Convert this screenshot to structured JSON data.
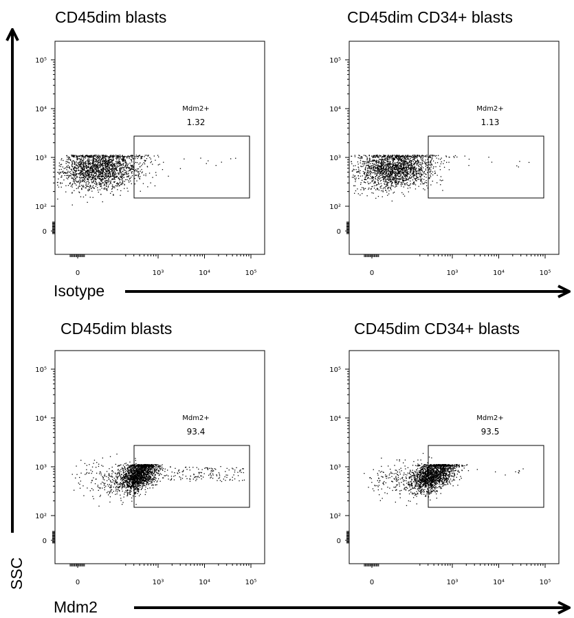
{
  "chart_data": [
    {
      "type": "flow-scatter",
      "title": "CD45dim blasts",
      "gate_label": "Mdm2+",
      "gate_value": 1.32,
      "xticks": [
        0,
        {
          "value": 1000,
          "label": "10³"
        },
        {
          "value": 10000,
          "label": "10⁴"
        },
        {
          "value": 100000,
          "label": "10⁵"
        }
      ],
      "yticks": [
        0,
        {
          "value": 100,
          "label": "10²"
        },
        {
          "value": 1000,
          "label": "10³"
        },
        {
          "value": 10000,
          "label": "10⁴"
        },
        {
          "value": 100000,
          "label": "10⁵"
        }
      ]
    },
    {
      "type": "flow-scatter",
      "title": "CD45dim CD34+ blasts",
      "gate_label": "Mdm2+",
      "gate_value": 1.13,
      "xticks": [
        0,
        {
          "value": 1000,
          "label": "10³"
        },
        {
          "value": 10000,
          "label": "10⁴"
        },
        {
          "value": 100000,
          "label": "10⁵"
        }
      ],
      "yticks": [
        0,
        {
          "value": 100,
          "label": "10²"
        },
        {
          "value": 1000,
          "label": "10³"
        },
        {
          "value": 10000,
          "label": "10⁴"
        },
        {
          "value": 100000,
          "label": "10⁵"
        }
      ]
    },
    {
      "type": "flow-scatter",
      "title": "CD45dim blasts",
      "gate_label": "Mdm2+",
      "gate_value": 93.4,
      "xticks": [
        0,
        {
          "value": 1000,
          "label": "10³"
        },
        {
          "value": 10000,
          "label": "10⁴"
        },
        {
          "value": 100000,
          "label": "10⁵"
        }
      ],
      "yticks": [
        0,
        {
          "value": 100,
          "label": "10²"
        },
        {
          "value": 1000,
          "label": "10³"
        },
        {
          "value": 10000,
          "label": "10⁴"
        },
        {
          "value": 100000,
          "label": "10⁵"
        }
      ]
    },
    {
      "type": "flow-scatter",
      "title": "CD45dim CD34+ blasts",
      "gate_label": "Mdm2+",
      "gate_value": 93.5,
      "xticks": [
        0,
        {
          "value": 1000,
          "label": "10³"
        },
        {
          "value": 10000,
          "label": "10⁴"
        },
        {
          "value": 100000,
          "label": "10⁵"
        }
      ],
      "yticks": [
        0,
        {
          "value": 100,
          "label": "10²"
        },
        {
          "value": 1000,
          "label": "10³"
        },
        {
          "value": 10000,
          "label": "10⁴"
        },
        {
          "value": 100000,
          "label": "10⁵"
        }
      ]
    }
  ],
  "x_labels": [
    "Isotype",
    "Mdm2"
  ],
  "y_label": "SSC"
}
